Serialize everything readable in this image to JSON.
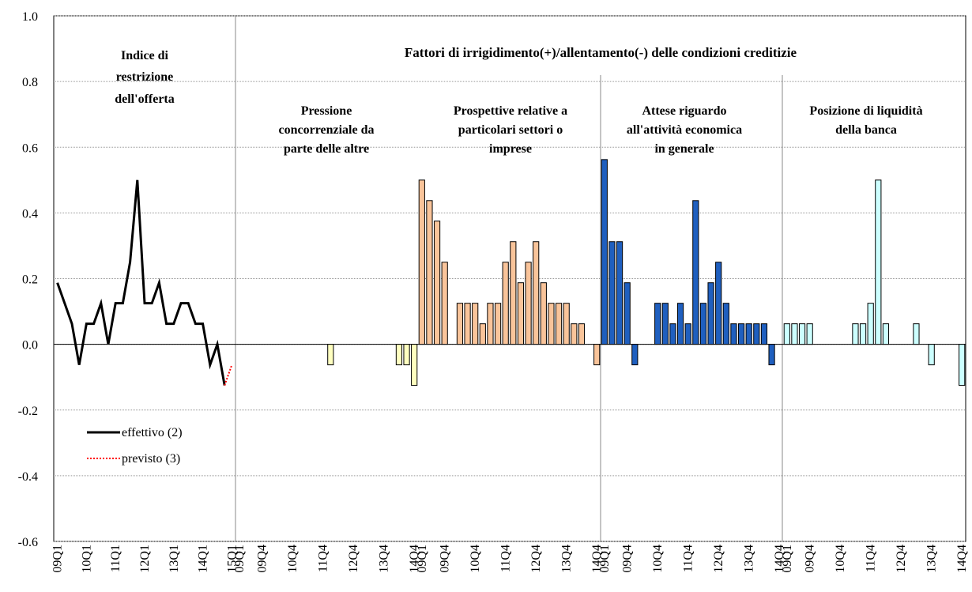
{
  "group_title": "Fattori di irrigidimento(+)/allentamento(-) delle condizioni creditizie",
  "chart_data": [
    {
      "type": "line",
      "title": [
        "Indice di",
        "restrizione",
        "dell'offerta"
      ],
      "categories": [
        "09Q1",
        null,
        null,
        null,
        "10Q1",
        null,
        null,
        null,
        "11Q1",
        null,
        null,
        null,
        "12Q1",
        null,
        null,
        null,
        "13Q1",
        null,
        null,
        null,
        "14Q1",
        null,
        null,
        null,
        "15Q1"
      ],
      "series": [
        {
          "name": "effettivo (2)",
          "color": "#000000",
          "dash": false,
          "values": [
            0.1875,
            0.125,
            0.0625,
            -0.0625,
            0.0625,
            0.0625,
            0.125,
            0,
            0.125,
            0.125,
            0.25,
            0.5,
            0.125,
            0.125,
            0.1875,
            0.0625,
            0.0625,
            0.125,
            0.125,
            0.0625,
            0.0625,
            -0.0625,
            0,
            -0.125,
            null
          ]
        },
        {
          "name": "previsto (3)",
          "color": "#ff0000",
          "dash": true,
          "values": [
            null,
            null,
            null,
            null,
            null,
            null,
            null,
            null,
            null,
            null,
            null,
            null,
            null,
            null,
            null,
            null,
            null,
            null,
            null,
            null,
            null,
            null,
            null,
            -0.125,
            -0.0625
          ]
        }
      ],
      "ylim": [
        -0.6,
        1.0
      ],
      "yticks": [
        {
          "value": -0.6,
          "label": "-0.6"
        },
        {
          "value": -0.4,
          "label": "-0.4"
        },
        {
          "value": -0.2,
          "label": "-0.2"
        },
        {
          "value": 0,
          "label": "0.0"
        },
        0.2,
        0.4,
        0.6,
        0.8,
        {
          "value": 1,
          "label": "1.0"
        }
      ],
      "grid": true
    },
    {
      "type": "bar",
      "title": [
        "Pressione",
        "concorrenziale da",
        "parte delle altre"
      ],
      "color": "#ffffc0",
      "categories": [
        "09Q1",
        null,
        null,
        "09Q4",
        null,
        null,
        null,
        "10Q4",
        null,
        null,
        null,
        "11Q4",
        null,
        null,
        null,
        "12Q4",
        null,
        null,
        null,
        "13Q4",
        null,
        null,
        null,
        "14Q4"
      ],
      "values": [
        0,
        0,
        0,
        0,
        0,
        0,
        0,
        0,
        0,
        0,
        0,
        0,
        -0.0625,
        0,
        0,
        0,
        0,
        0,
        0,
        0,
        0,
        -0.0625,
        -0.0625,
        -0.125
      ],
      "ylim": [
        -0.6,
        1.0
      ]
    },
    {
      "type": "bar",
      "title": [
        "Prospettive relative a",
        "particolari settori o",
        "imprese"
      ],
      "color": "#f9c49a",
      "categories": [
        "09Q1",
        null,
        null,
        "09Q4",
        null,
        null,
        null,
        "10Q4",
        null,
        null,
        null,
        "11Q4",
        null,
        null,
        null,
        "12Q4",
        null,
        null,
        null,
        "13Q4",
        null,
        null,
        null,
        "14Q4"
      ],
      "values": [
        0.5,
        0.4375,
        0.375,
        0.25,
        0,
        0.125,
        0.125,
        0.125,
        0.0625,
        0.125,
        0.125,
        0.25,
        0.3125,
        0.1875,
        0.25,
        0.3125,
        0.1875,
        0.125,
        0.125,
        0.125,
        0.0625,
        0.0625,
        0,
        -0.0625
      ],
      "ylim": [
        -0.6,
        1.0
      ]
    },
    {
      "type": "bar",
      "title": [
        "Attese riguardo",
        "all'attività economica",
        "in generale"
      ],
      "color": "#1f5fbf",
      "categories": [
        "09Q1",
        null,
        null,
        "09Q4",
        null,
        null,
        null,
        "10Q4",
        null,
        null,
        null,
        "11Q4",
        null,
        null,
        null,
        "12Q4",
        null,
        null,
        null,
        "13Q4",
        null,
        null,
        null,
        "14Q4"
      ],
      "values": [
        0.5625,
        0.3125,
        0.3125,
        0.1875,
        -0.0625,
        0,
        0,
        0.125,
        0.125,
        0.0625,
        0.125,
        0.0625,
        0.4375,
        0.125,
        0.1875,
        0.25,
        0.125,
        0.0625,
        0.0625,
        0.0625,
        0.0625,
        0.0625,
        -0.0625,
        0
      ],
      "ylim": [
        -0.6,
        1.0
      ]
    },
    {
      "type": "bar",
      "title": [
        "Posizione di liquidità",
        "della banca"
      ],
      "color": "#ccffff",
      "categories": [
        "09Q1",
        null,
        null,
        "09Q4",
        null,
        null,
        null,
        "10Q4",
        null,
        null,
        null,
        "11Q4",
        null,
        null,
        null,
        "12Q4",
        null,
        null,
        null,
        "13Q4",
        null,
        null,
        null,
        "14Q4"
      ],
      "values": [
        0.0625,
        0.0625,
        0.0625,
        0.0625,
        0,
        0,
        0,
        0,
        0,
        0.0625,
        0.0625,
        0.125,
        0.5,
        0.0625,
        0,
        0,
        0,
        0.0625,
        0,
        -0.0625,
        0,
        0,
        0,
        -0.125
      ],
      "ylim": [
        -0.6,
        1.0
      ]
    }
  ]
}
